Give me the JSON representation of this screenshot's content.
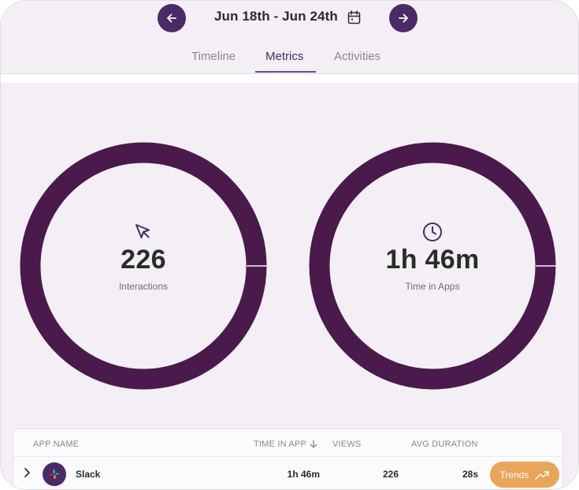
{
  "header": {
    "date_range": "Jun 18th - Jun 24th",
    "prev_icon": "arrow-left-icon",
    "next_icon": "arrow-right-icon",
    "calendar_icon": "calendar-icon"
  },
  "tabs": [
    {
      "label": "Timeline",
      "active": false
    },
    {
      "label": "Metrics",
      "active": true
    },
    {
      "label": "Activities",
      "active": false
    }
  ],
  "metrics": [
    {
      "value": "226",
      "label": "Interactions",
      "icon": "cursor-pointer-icon"
    },
    {
      "value": "1h 46m",
      "label": "Time in Apps",
      "icon": "clock-icon"
    }
  ],
  "table": {
    "columns": {
      "app_name": "APP NAME",
      "time_in_app": "TIME IN APP",
      "views": "VIEWS",
      "avg_duration": "AVG DURATION"
    },
    "rows": [
      {
        "app": "Slack",
        "icon": "slack-icon",
        "time_in_app": "1h 46m",
        "views": "226",
        "avg_duration": "28s",
        "action_label": "Trends",
        "action_icon": "trending-up-icon"
      }
    ]
  },
  "colors": {
    "brand_purple": "#4a2b68",
    "ring": "#4a1a4c",
    "background": "#f3eff4",
    "trends_button": "#e9a55a"
  }
}
